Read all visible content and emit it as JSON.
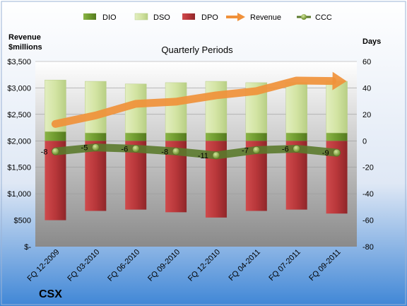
{
  "chart_data": {
    "type": "bar",
    "title": "Quarterly Periods",
    "company": "CSX",
    "left_axis_label": [
      "Revenue",
      "$millions"
    ],
    "right_axis_label": "Days",
    "categories": [
      "FQ 12-2009",
      "FQ 03-2010",
      "FQ 06-2010",
      "FQ 09-2010",
      "FQ 12-2010",
      "FQ 04-2011",
      "FQ 07-2011",
      "FQ 09-2011"
    ],
    "left_ticks": [
      "$-",
      "$500",
      "$1,000",
      "$1,500",
      "$2,000",
      "$2,500",
      "$3,000",
      "$3,500"
    ],
    "left_range": [
      0,
      3500
    ],
    "right_range": [
      -80,
      60
    ],
    "right_ticks": [
      -80,
      -60,
      -40,
      -20,
      0,
      20,
      40,
      60
    ],
    "series": [
      {
        "name": "DIO",
        "axis": "days",
        "values": [
          7,
          6,
          6,
          6,
          6,
          6,
          6,
          6
        ]
      },
      {
        "name": "DSO",
        "axis": "days",
        "values": [
          39,
          39,
          37,
          38,
          39,
          38,
          38,
          39
        ]
      },
      {
        "name": "DPO",
        "axis": "days",
        "values": [
          -60,
          -53,
          -52,
          -54,
          -58,
          -53,
          -52,
          -55
        ]
      },
      {
        "name": "Revenue",
        "axis": "revenue",
        "values": [
          2320,
          2480,
          2700,
          2740,
          2860,
          2940,
          3140,
          3130
        ]
      },
      {
        "name": "CCC",
        "axis": "days",
        "values": [
          -8,
          -5,
          -6,
          -8,
          -11,
          -7,
          -6,
          -9
        ]
      }
    ],
    "ccc_labels": [
      "-8",
      "-5",
      "-6",
      "-8",
      "-11",
      "-7",
      "-6",
      "-9"
    ],
    "legend_position": "top",
    "gridlines": true,
    "colors": {
      "dio": "#6e9a2e",
      "dso": "#d3e4a3",
      "dpo": "#b8373a",
      "revenue": "#f0913a",
      "ccc": "#5b7a2c",
      "ccc_marker": "#9ab84d"
    }
  }
}
